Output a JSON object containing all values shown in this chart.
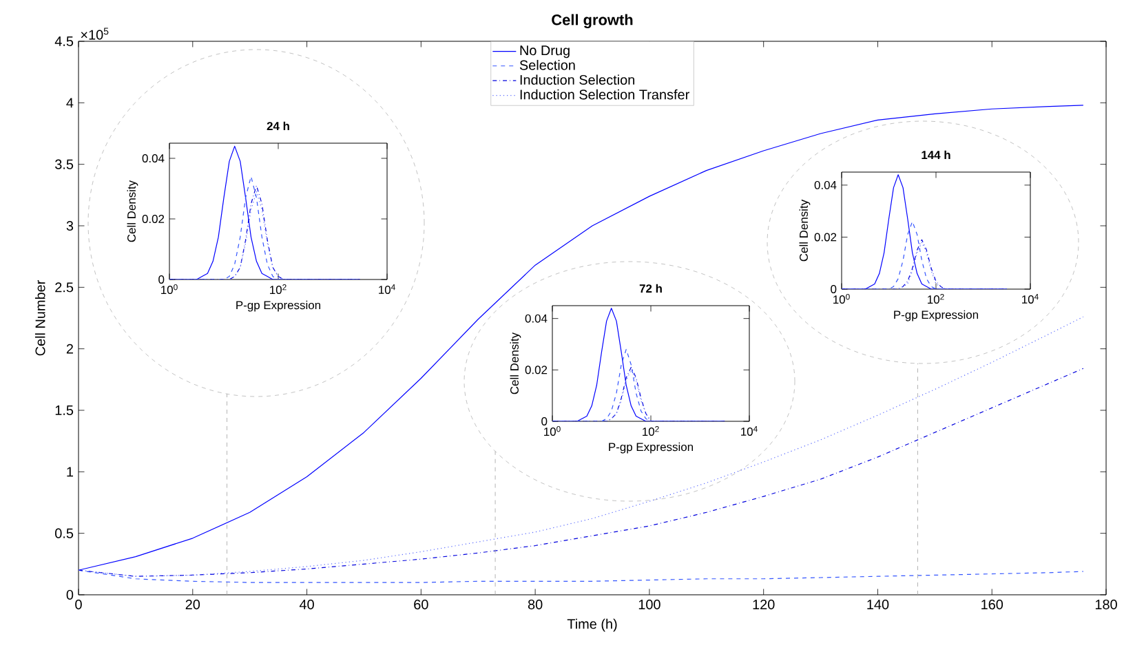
{
  "chart_data": [
    {
      "type": "line",
      "title": "Cell growth",
      "xlabel": "Time (h)",
      "ylabel": "Cell Number",
      "x": [
        0,
        10,
        20,
        30,
        40,
        50,
        60,
        70,
        80,
        90,
        100,
        110,
        120,
        130,
        140,
        150,
        160,
        170,
        176
      ],
      "series": [
        {
          "name": "No Drug",
          "color": "#0000ff",
          "line_style": "solid",
          "values": [
            0.2,
            0.31,
            0.46,
            0.67,
            0.96,
            1.32,
            1.76,
            2.24,
            2.68,
            3.0,
            3.24,
            3.45,
            3.61,
            3.75,
            3.86,
            3.91,
            3.95,
            3.97,
            3.98
          ]
        },
        {
          "name": "Selection",
          "color": "#3355ff",
          "line_style": "dashed",
          "values": [
            0.2,
            0.13,
            0.11,
            0.1,
            0.1,
            0.1,
            0.1,
            0.11,
            0.11,
            0.11,
            0.12,
            0.13,
            0.13,
            0.14,
            0.15,
            0.16,
            0.17,
            0.18,
            0.19
          ]
        },
        {
          "name": "Induction Selection",
          "color": "#0000dd",
          "line_style": "dashdot",
          "values": [
            0.2,
            0.15,
            0.16,
            0.18,
            0.21,
            0.25,
            0.29,
            0.34,
            0.4,
            0.48,
            0.56,
            0.67,
            0.8,
            0.94,
            1.12,
            1.32,
            1.52,
            1.72,
            1.84
          ]
        },
        {
          "name": "Induction Selection Transfer",
          "color": "#5566ff",
          "line_style": "dotted",
          "values": [
            0.2,
            0.15,
            0.16,
            0.19,
            0.23,
            0.28,
            0.35,
            0.43,
            0.51,
            0.62,
            0.76,
            0.91,
            1.08,
            1.26,
            1.46,
            1.67,
            1.89,
            2.12,
            2.26
          ]
        }
      ],
      "xlim": [
        0,
        180
      ],
      "xticks": [
        0,
        20,
        40,
        60,
        80,
        100,
        120,
        140,
        160,
        180
      ],
      "ylim": [
        0,
        4.5
      ],
      "yticks": [
        0,
        0.5,
        1,
        1.5,
        2,
        2.5,
        3,
        3.5,
        4,
        4.5
      ],
      "annotations": [
        "×10$^{5}$"
      ],
      "ref_lines": [
        {
          "axis": "x",
          "value": 26,
          "color": "#a0a0a0",
          "line_style": "dashed"
        },
        {
          "axis": "x",
          "value": 73,
          "color": "#a0a0a0",
          "line_style": "dashed"
        },
        {
          "axis": "x",
          "value": 147,
          "color": "#a0a0a0",
          "line_style": "dashed"
        }
      ],
      "legend": "top"
    },
    {
      "type": "line",
      "title": "24 h",
      "xlabel": "P-gp Expression",
      "ylabel": "Cell Density",
      "log": "x",
      "x": [
        1,
        3.16,
        3.98,
        5.01,
        6.31,
        7.94,
        10,
        12.6,
        15.8,
        20,
        25.1,
        31.6,
        39.8,
        50.1,
        63.1,
        79.4,
        100,
        126,
        158,
        316,
        3162
      ],
      "series": [
        {
          "color": "#0000ff",
          "line_style": "solid",
          "values": [
            0,
            0,
            0.001,
            0.002,
            0.006,
            0.014,
            0.027,
            0.039,
            0.044,
            0.039,
            0.027,
            0.014,
            0.006,
            0.002,
            0.001,
            0,
            0,
            0,
            0,
            0,
            0
          ]
        },
        {
          "color": "#3355ff",
          "line_style": "dashed",
          "values": [
            0,
            0,
            0,
            0,
            0,
            0,
            0,
            0.001,
            0.005,
            0.014,
            0.027,
            0.034,
            0.027,
            0.014,
            0.005,
            0.001,
            0,
            0,
            0,
            0,
            0
          ]
        },
        {
          "color": "#0000dd",
          "line_style": "dashdot",
          "values": [
            0,
            0,
            0,
            0,
            0,
            0,
            0,
            0,
            0.001,
            0.004,
            0.013,
            0.025,
            0.031,
            0.025,
            0.013,
            0.004,
            0.001,
            0,
            0,
            0,
            0
          ]
        },
        {
          "color": "#5566ff",
          "line_style": "dotted",
          "values": [
            0,
            0,
            0,
            0,
            0,
            0,
            0,
            0,
            0.001,
            0.004,
            0.012,
            0.023,
            0.029,
            0.023,
            0.012,
            0.004,
            0.001,
            0,
            0,
            0,
            0
          ]
        }
      ],
      "xlim": [
        1,
        10000
      ],
      "xticks": [
        {
          "value": 1,
          "label": "10$^{0}$"
        },
        {
          "value": 100,
          "label": "10$^{2}$"
        },
        {
          "value": 10000,
          "label": "10$^{4}$"
        }
      ],
      "ylim": [
        0,
        0.045
      ],
      "yticks": [
        0,
        0.02,
        0.04
      ]
    },
    {
      "type": "line",
      "title": "72 h",
      "xlabel": "P-gp Expression",
      "ylabel": "Cell Density",
      "log": "x",
      "x": [
        1,
        3.16,
        3.98,
        5.01,
        6.31,
        7.94,
        10,
        12.6,
        15.8,
        20,
        25.1,
        31.6,
        39.8,
        50.1,
        63.1,
        79.4,
        100,
        126,
        158,
        316,
        3162
      ],
      "series": [
        {
          "color": "#0000ff",
          "line_style": "solid",
          "values": [
            0,
            0,
            0.001,
            0.002,
            0.006,
            0.014,
            0.027,
            0.039,
            0.044,
            0.039,
            0.027,
            0.014,
            0.006,
            0.002,
            0.001,
            0,
            0,
            0,
            0,
            0,
            0
          ]
        },
        {
          "color": "#3355ff",
          "line_style": "dashed",
          "values": [
            0,
            0,
            0,
            0,
            0,
            0,
            0,
            0.001,
            0.004,
            0.011,
            0.022,
            0.028,
            0.022,
            0.011,
            0.004,
            0.001,
            0,
            0,
            0,
            0,
            0
          ]
        },
        {
          "color": "#0000dd",
          "line_style": "dashdot",
          "values": [
            0,
            0,
            0,
            0,
            0,
            0,
            0,
            0,
            0.001,
            0.003,
            0.009,
            0.017,
            0.021,
            0.017,
            0.009,
            0.003,
            0,
            0,
            0,
            0,
            0
          ]
        },
        {
          "color": "#5566ff",
          "line_style": "dotted",
          "values": [
            0,
            0,
            0,
            0,
            0,
            0,
            0,
            0,
            0.001,
            0.003,
            0.008,
            0.016,
            0.02,
            0.016,
            0.008,
            0.003,
            0,
            0,
            0,
            0,
            0
          ]
        }
      ],
      "xlim": [
        1,
        10000
      ],
      "xticks": [
        {
          "value": 1,
          "label": "10$^{0}$"
        },
        {
          "value": 100,
          "label": "10$^{2}$"
        },
        {
          "value": 10000,
          "label": "10$^{4}$"
        }
      ],
      "ylim": [
        0,
        0.045
      ],
      "yticks": [
        0,
        0.02,
        0.04
      ]
    },
    {
      "type": "line",
      "title": "144 h",
      "xlabel": "P-gp Expression",
      "ylabel": "Cell Density",
      "log": "x",
      "x": [
        1,
        3.16,
        3.98,
        5.01,
        6.31,
        7.94,
        10,
        12.6,
        15.8,
        20,
        25.1,
        31.6,
        39.8,
        50.1,
        63.1,
        79.4,
        100,
        126,
        158,
        316,
        3162
      ],
      "series": [
        {
          "color": "#0000ff",
          "line_style": "solid",
          "values": [
            0,
            0,
            0.001,
            0.002,
            0.006,
            0.014,
            0.027,
            0.039,
            0.044,
            0.039,
            0.027,
            0.014,
            0.006,
            0.002,
            0.001,
            0,
            0,
            0,
            0,
            0,
            0
          ]
        },
        {
          "color": "#3355ff",
          "line_style": "dashed",
          "values": [
            0,
            0,
            0,
            0,
            0,
            0,
            0,
            0.001,
            0.004,
            0.011,
            0.021,
            0.026,
            0.021,
            0.011,
            0.004,
            0.001,
            0,
            0,
            0,
            0,
            0
          ]
        },
        {
          "color": "#0000dd",
          "line_style": "dashdot",
          "values": [
            0,
            0,
            0,
            0,
            0,
            0,
            0,
            0,
            0,
            0.001,
            0.003,
            0.008,
            0.015,
            0.019,
            0.015,
            0.008,
            0.003,
            0.001,
            0,
            0,
            0
          ]
        },
        {
          "color": "#5566ff",
          "line_style": "dotted",
          "values": [
            0,
            0,
            0,
            0,
            0,
            0,
            0,
            0,
            0,
            0.001,
            0.002,
            0.007,
            0.014,
            0.018,
            0.014,
            0.007,
            0.002,
            0.001,
            0,
            0,
            0
          ]
        }
      ],
      "xlim": [
        1,
        10000
      ],
      "xticks": [
        {
          "value": 1,
          "label": "10$^{0}$"
        },
        {
          "value": 100,
          "label": "10$^{2}$"
        },
        {
          "value": 10000,
          "label": "10$^{4}$"
        }
      ],
      "ylim": [
        0,
        0.045
      ],
      "yticks": [
        0,
        0.02,
        0.04
      ]
    }
  ]
}
